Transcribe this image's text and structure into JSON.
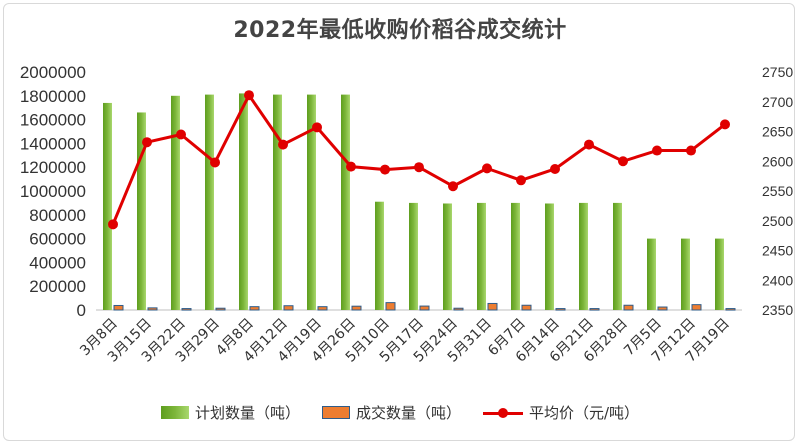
{
  "chart_data": {
    "type": "bar+line",
    "title": "2022年最低收购价稻谷成交统计",
    "categories": [
      "3月8日",
      "3月15日",
      "3月22日",
      "3月29日",
      "4月8日",
      "4月12日",
      "4月19日",
      "4月26日",
      "5月10日",
      "5月17日",
      "5月24日",
      "5月31日",
      "6月7日",
      "6月14日",
      "6月21日",
      "6月28日",
      "7月5日",
      "7月12日",
      "7月19日"
    ],
    "series": [
      {
        "name": "计划数量（吨）",
        "type": "bar",
        "axis": "left",
        "color": "#7DB63A",
        "values": [
          1740000,
          1660000,
          1800000,
          1810000,
          1820000,
          1810000,
          1810000,
          1810000,
          910000,
          900000,
          895000,
          900000,
          900000,
          895000,
          900000,
          900000,
          600000,
          600000,
          600000
        ]
      },
      {
        "name": "成交数量（吨）",
        "type": "bar",
        "axis": "left",
        "color": "#ED7D31",
        "values": [
          38000,
          18000,
          12000,
          15000,
          28000,
          36000,
          28000,
          32000,
          62000,
          33000,
          15000,
          55000,
          40000,
          12000,
          12000,
          40000,
          25000,
          45000,
          12000
        ]
      },
      {
        "name": "平均价（元/吨）",
        "type": "line",
        "axis": "right",
        "color": "#E00000",
        "values": [
          2494,
          2632,
          2645,
          2598,
          2711,
          2628,
          2657,
          2591,
          2586,
          2590,
          2558,
          2588,
          2568,
          2587,
          2628,
          2600,
          2618,
          2618,
          2662
        ]
      }
    ],
    "y_left": {
      "min": 0,
      "max": 2000000,
      "step": 200000,
      "tick_labels": [
        "0",
        "200000",
        "400000",
        "600000",
        "800000",
        "1000000",
        "1200000",
        "1400000",
        "1600000",
        "1800000",
        "2000000"
      ]
    },
    "y_right": {
      "min": 2350,
      "max": 2750,
      "step": 50,
      "tick_labels": [
        "2350",
        "2400",
        "2450",
        "2500",
        "2550",
        "2600",
        "2650",
        "2700",
        "2750"
      ]
    },
    "grid": false,
    "legend_position": "bottom"
  }
}
